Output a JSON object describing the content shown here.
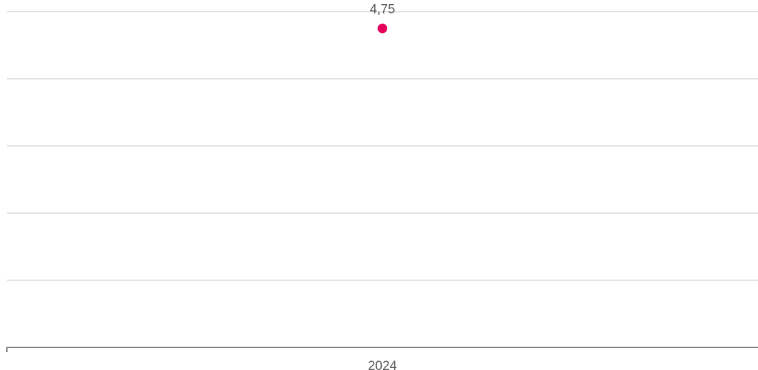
{
  "chart_data": {
    "type": "scatter",
    "title": "",
    "xlabel": "",
    "ylabel": "",
    "categories": [
      "2024"
    ],
    "series": [
      {
        "values": [
          4.75
        ],
        "labels": [
          "4,75"
        ],
        "color": "#e6005c"
      }
    ],
    "ylim": [
      0,
      5
    ],
    "y_gridlines": [
      1,
      2,
      3,
      4,
      5
    ],
    "y_tick_labels_visible": false,
    "grid": true,
    "legend": "none"
  }
}
